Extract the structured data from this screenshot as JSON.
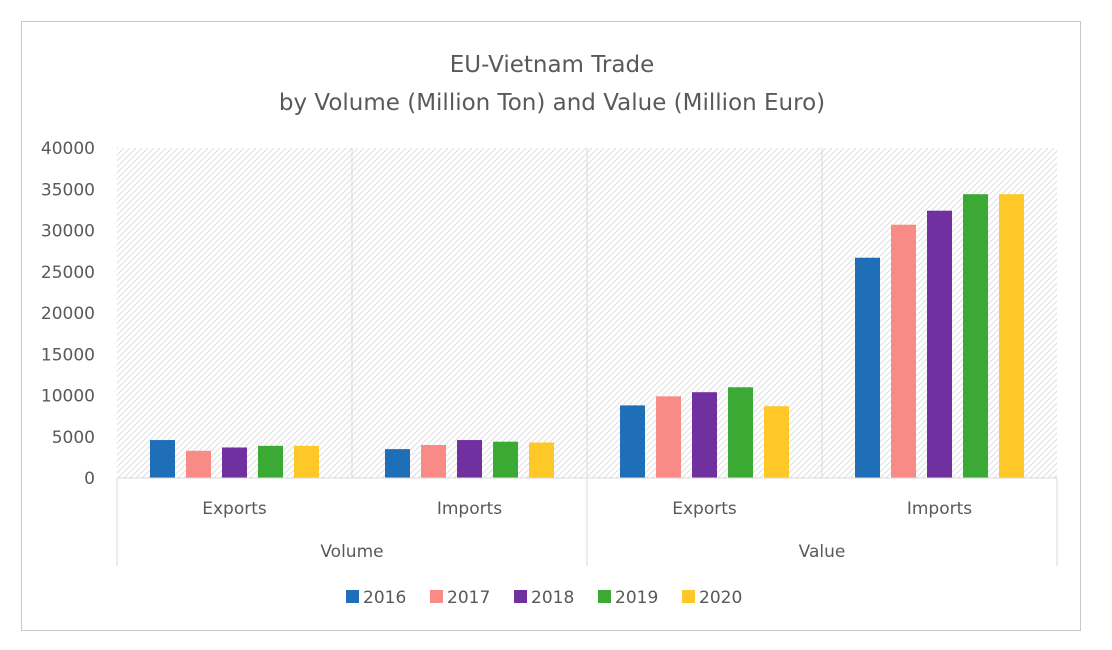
{
  "chart_data": {
    "type": "bar",
    "title_lines": [
      "EU-Vietnam Trade",
      "by Volume (Million Ton) and Value (Million Euro)"
    ],
    "groups": [
      {
        "label": "Volume",
        "categories": [
          "Exports",
          "Imports"
        ]
      },
      {
        "label": "Value",
        "categories": [
          "Exports",
          "Imports"
        ]
      }
    ],
    "categories": [
      "Exports",
      "Imports",
      "Exports",
      "Imports"
    ],
    "series": [
      {
        "name": "2016",
        "color": "#1f6fb8",
        "values": [
          4600,
          3500,
          8800,
          26700
        ]
      },
      {
        "name": "2017",
        "color": "#f98b87",
        "values": [
          3300,
          4000,
          9900,
          30700
        ]
      },
      {
        "name": "2018",
        "color": "#7030a0",
        "values": [
          3700,
          4600,
          10400,
          32400
        ]
      },
      {
        "name": "2019",
        "color": "#3aaa35",
        "values": [
          3900,
          4400,
          11000,
          34400
        ]
      },
      {
        "name": "2020",
        "color": "#fec828",
        "values": [
          3900,
          4300,
          8700,
          34400
        ]
      }
    ],
    "yticks": [
      "40000",
      "35000",
      "30000",
      "25000",
      "20000",
      "15000",
      "10000",
      "5000",
      "0"
    ],
    "ylim": [
      0,
      40000
    ],
    "legend_position": "bottom",
    "grid": false
  }
}
